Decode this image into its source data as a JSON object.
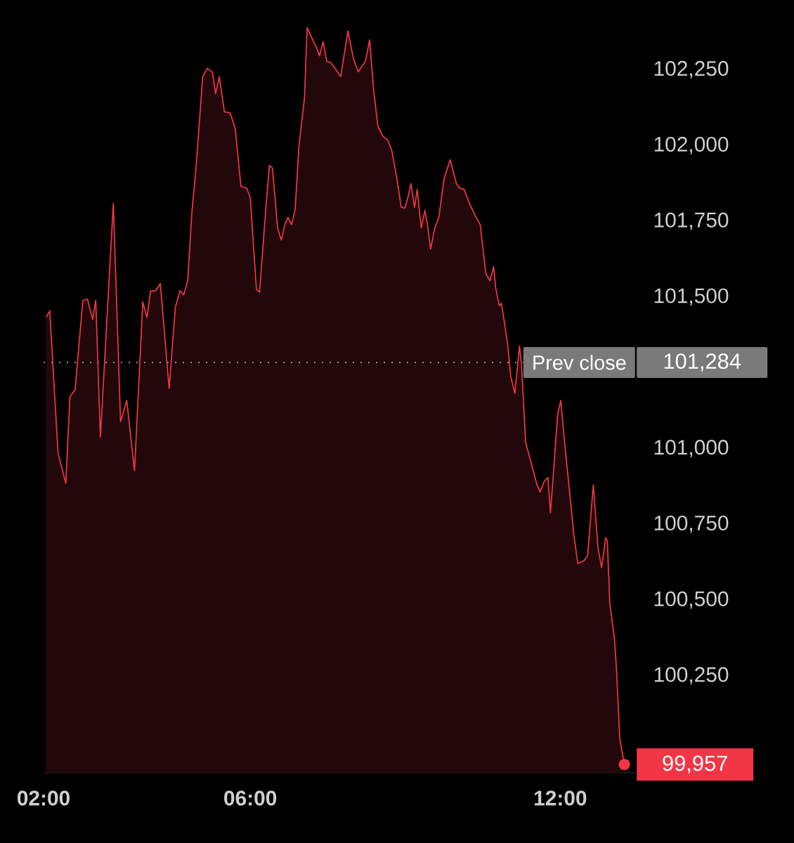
{
  "chart_data": {
    "type": "area",
    "color": "#f23645",
    "x": [
      2.05,
      2.12,
      2.28,
      2.43,
      2.51,
      2.61,
      2.76,
      2.85,
      2.95,
      3.01,
      3.1,
      3.35,
      3.49,
      3.61,
      3.76,
      3.92,
      4.0,
      4.07,
      4.17,
      4.26,
      4.43,
      4.55,
      4.64,
      4.71,
      4.79,
      4.87,
      4.95,
      5.08,
      5.17,
      5.27,
      5.33,
      5.4,
      5.5,
      5.61,
      5.71,
      5.82,
      5.93,
      6.0,
      6.12,
      6.18,
      6.3,
      6.37,
      6.43,
      6.53,
      6.6,
      6.67,
      6.73,
      6.8,
      6.87,
      6.94,
      7.05,
      7.1,
      7.21,
      7.29,
      7.34,
      7.41,
      7.48,
      7.56,
      7.64,
      7.75,
      7.89,
      8.0,
      8.09,
      8.23,
      8.31,
      8.39,
      8.47,
      8.57,
      8.66,
      8.74,
      8.85,
      8.92,
      8.99,
      9.05,
      9.11,
      9.18,
      9.23,
      9.31,
      9.38,
      9.43,
      9.49,
      9.57,
      9.65,
      9.75,
      9.87,
      9.99,
      10.05,
      10.14,
      10.24,
      10.37,
      10.45,
      10.56,
      10.64,
      10.71,
      10.75,
      10.82,
      10.86,
      10.91,
      10.98,
      11.04,
      11.12,
      11.21,
      11.25,
      11.33,
      11.44,
      11.55,
      11.61,
      11.69,
      11.76,
      11.81,
      11.95,
      12.01,
      12.07,
      12.18,
      12.26,
      12.34,
      12.46,
      12.53,
      12.64,
      12.73,
      12.8,
      12.88,
      12.91,
      12.96,
      13.05,
      13.09,
      13.15,
      13.24
    ],
    "values": [
      101433,
      101454,
      100985,
      100885,
      101171,
      101194,
      101489,
      101493,
      101426,
      101489,
      101038,
      101809,
      101089,
      101159,
      100927,
      101484,
      101433,
      101519,
      101521,
      101544,
      101198,
      101465,
      101521,
      101507,
      101554,
      101779,
      101925,
      102227,
      102255,
      102241,
      102171,
      102227,
      102111,
      102108,
      102055,
      101865,
      101860,
      101828,
      101526,
      101516,
      101790,
      101934,
      101925,
      101728,
      101688,
      101739,
      101763,
      101739,
      101790,
      101995,
      102157,
      102389,
      102348,
      102320,
      102296,
      102343,
      102278,
      102273,
      102255,
      102227,
      102378,
      102285,
      102243,
      102278,
      102348,
      102180,
      102064,
      102030,
      102018,
      101983,
      101879,
      101797,
      101793,
      101828,
      101874,
      101795,
      101855,
      101728,
      101786,
      101739,
      101658,
      101728,
      101763,
      101890,
      101953,
      101874,
      101860,
      101855,
      101809,
      101763,
      101739,
      101577,
      101554,
      101600,
      101530,
      101472,
      101479,
      101426,
      101345,
      101240,
      101182,
      101338,
      101275,
      101020,
      100950,
      100880,
      100857,
      100892,
      100904,
      100788,
      101113,
      101159,
      101043,
      100857,
      100718,
      100620,
      100630,
      100648,
      100880,
      100672,
      100607,
      100706,
      100695,
      100486,
      100370,
      100265,
      100045,
      99957
    ],
    "xlim": [
      2.0,
      13.45
    ],
    "ylim": [
      99930,
      102480
    ],
    "xticks": [
      {
        "value": 2,
        "label": "02:00"
      },
      {
        "value": 6,
        "label": "06:00"
      },
      {
        "value": 12,
        "label": "12:00"
      }
    ],
    "yticks": [
      {
        "value": 100250,
        "label": "100,250"
      },
      {
        "value": 100500,
        "label": "100,500"
      },
      {
        "value": 100750,
        "label": "100,750"
      },
      {
        "value": 101000,
        "label": "101,000"
      },
      {
        "value": 101500,
        "label": "101,500"
      },
      {
        "value": 101750,
        "label": "101,750"
      },
      {
        "value": 102000,
        "label": "102,000"
      },
      {
        "value": 102250,
        "label": "102,250"
      }
    ],
    "ref_lines": [
      {
        "axis": "y",
        "value": 101284,
        "label": "Prev close",
        "line_style": "dotted"
      }
    ],
    "annotations": [
      "101,284",
      {
        "text": "99,957",
        "x": 13.24,
        "y": 99957
      }
    ]
  }
}
